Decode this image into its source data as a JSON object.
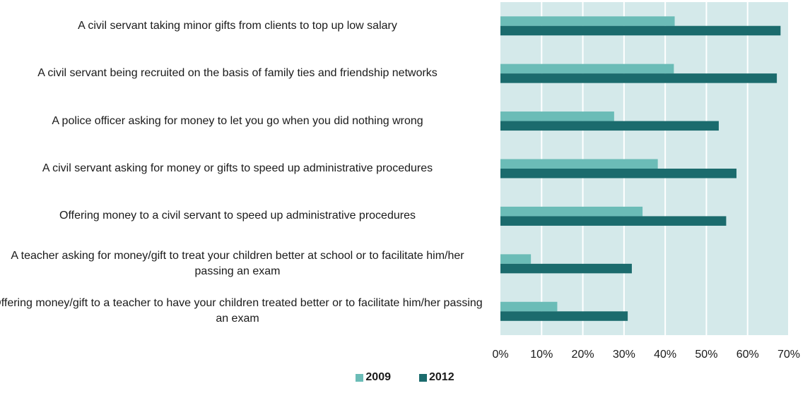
{
  "chart_data": {
    "type": "bar",
    "orientation": "horizontal",
    "categories": [
      "A civil servant taking minor gifts from clients to top up low salary",
      "A civil servant being recruited on the basis of family ties and friendship networks",
      "A police officer asking for money to let you go when you did nothing wrong",
      "A civil servant asking for money or gifts to speed up administrative procedures",
      "Offering money to a civil servant to speed up administrative procedures",
      "A teacher asking for money/gift to treat your children better at school or to facilitate him/her passing an exam",
      "Offering money/gift to a teacher to have your children treated better or to facilitate him/her passing an exam"
    ],
    "series": [
      {
        "name": "2009",
        "color": "#6bbcb7",
        "values": [
          42.3,
          42.1,
          27.6,
          38.2,
          34.5,
          7.4,
          13.8
        ]
      },
      {
        "name": "2012",
        "color": "#1b6b6d",
        "values": [
          68.0,
          67.1,
          53.0,
          57.3,
          54.8,
          31.9,
          30.9
        ]
      }
    ],
    "xlim": [
      0,
      70
    ],
    "ticks": [
      "0%",
      "10%",
      "20%",
      "30%",
      "40%",
      "50%",
      "60%",
      "70%"
    ],
    "legend_position": "bottom",
    "plot_background": "#d4e9ea",
    "gridlines": true
  }
}
